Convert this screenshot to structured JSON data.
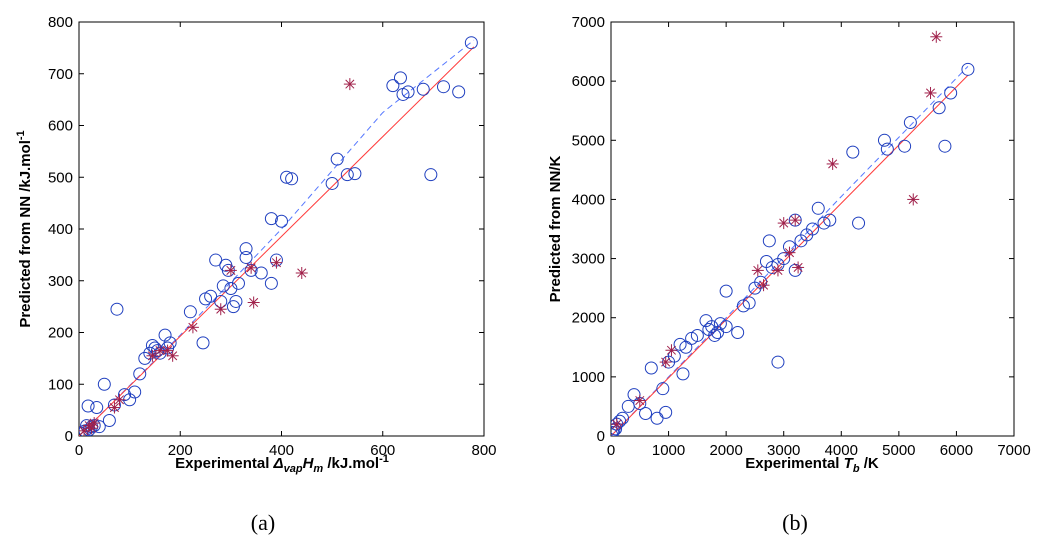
{
  "chart_data": [
    {
      "type": "scatter",
      "panel_label": "(a)",
      "title": "",
      "xlabel": {
        "prefix": "Experimental ",
        "sym": "Δ",
        "sub": "vap",
        "sym2": "H",
        "sub2": "m",
        "unit": " /kJ.mol",
        "sup": "-1"
      },
      "ylabel": {
        "text": "Predicted from NN /kJ.mol",
        "sup": "-1"
      },
      "xlim": [
        0,
        800
      ],
      "ylim": [
        0,
        800
      ],
      "xticks": [
        0,
        200,
        400,
        600,
        800
      ],
      "yticks": [
        0,
        100,
        200,
        300,
        400,
        500,
        600,
        700,
        800
      ],
      "grid": false,
      "colors": {
        "circle": "#1f3fbf",
        "star": "#a0204a",
        "solid": "#ff3b3b",
        "dashed": "#5577ff"
      },
      "circles": [
        [
          5,
          5
        ],
        [
          8,
          8
        ],
        [
          12,
          10
        ],
        [
          15,
          20
        ],
        [
          20,
          12
        ],
        [
          25,
          18
        ],
        [
          18,
          58
        ],
        [
          30,
          20
        ],
        [
          35,
          55
        ],
        [
          40,
          18
        ],
        [
          50,
          100
        ],
        [
          60,
          30
        ],
        [
          70,
          60
        ],
        [
          75,
          245
        ],
        [
          90,
          80
        ],
        [
          100,
          70
        ],
        [
          110,
          85
        ],
        [
          120,
          120
        ],
        [
          130,
          150
        ],
        [
          140,
          160
        ],
        [
          145,
          175
        ],
        [
          150,
          170
        ],
        [
          155,
          165
        ],
        [
          160,
          160
        ],
        [
          170,
          195
        ],
        [
          175,
          170
        ],
        [
          180,
          180
        ],
        [
          220,
          240
        ],
        [
          245,
          180
        ],
        [
          250,
          265
        ],
        [
          260,
          270
        ],
        [
          270,
          340
        ],
        [
          280,
          260
        ],
        [
          285,
          290
        ],
        [
          290,
          330
        ],
        [
          295,
          320
        ],
        [
          300,
          285
        ],
        [
          305,
          250
        ],
        [
          310,
          260
        ],
        [
          315,
          295
        ],
        [
          330,
          345
        ],
        [
          330,
          362
        ],
        [
          340,
          320
        ],
        [
          360,
          315
        ],
        [
          380,
          295
        ],
        [
          380,
          420
        ],
        [
          390,
          340
        ],
        [
          400,
          415
        ],
        [
          410,
          500
        ],
        [
          420,
          497
        ],
        [
          500,
          488
        ],
        [
          510,
          535
        ],
        [
          530,
          505
        ],
        [
          545,
          507
        ],
        [
          620,
          677
        ],
        [
          635,
          692
        ],
        [
          640,
          660
        ],
        [
          650,
          665
        ],
        [
          680,
          670
        ],
        [
          695,
          505
        ],
        [
          720,
          675
        ],
        [
          750,
          665
        ],
        [
          775,
          760
        ]
      ],
      "stars": [
        [
          10,
          10
        ],
        [
          20,
          20
        ],
        [
          25,
          15
        ],
        [
          30,
          25
        ],
        [
          70,
          55
        ],
        [
          80,
          70
        ],
        [
          145,
          155
        ],
        [
          160,
          165
        ],
        [
          175,
          165
        ],
        [
          185,
          155
        ],
        [
          225,
          210
        ],
        [
          280,
          245
        ],
        [
          300,
          320
        ],
        [
          340,
          325
        ],
        [
          345,
          258
        ],
        [
          390,
          335
        ],
        [
          440,
          315
        ],
        [
          535,
          680
        ]
      ],
      "solid_line": [
        [
          0,
          0
        ],
        [
          780,
          752
        ]
      ],
      "dashed_line": [
        [
          0,
          0
        ],
        [
          200,
          195
        ],
        [
          400,
          400
        ],
        [
          600,
          625
        ],
        [
          780,
          765
        ]
      ]
    },
    {
      "type": "scatter",
      "panel_label": "(b)",
      "title": "",
      "xlabel": {
        "prefix": "Experimental ",
        "sym": "T",
        "sub": "b",
        "unit": " /K"
      },
      "ylabel": {
        "text": "Predicted from NN/K"
      },
      "xlim": [
        0,
        7000
      ],
      "ylim": [
        0,
        7000
      ],
      "xticks": [
        0,
        1000,
        2000,
        3000,
        4000,
        5000,
        6000,
        7000
      ],
      "yticks": [
        0,
        1000,
        2000,
        3000,
        4000,
        5000,
        6000,
        7000
      ],
      "grid": false,
      "colors": {
        "circle": "#1f3fbf",
        "star": "#a0204a",
        "solid": "#ff3b3b",
        "dashed": "#5577ff"
      },
      "circles": [
        [
          10,
          20
        ],
        [
          30,
          60
        ],
        [
          50,
          100
        ],
        [
          80,
          120
        ],
        [
          100,
          200
        ],
        [
          150,
          250
        ],
        [
          200,
          300
        ],
        [
          300,
          500
        ],
        [
          400,
          700
        ],
        [
          500,
          550
        ],
        [
          600,
          380
        ],
        [
          700,
          1150
        ],
        [
          800,
          300
        ],
        [
          900,
          800
        ],
        [
          950,
          400
        ],
        [
          1000,
          1250
        ],
        [
          1100,
          1350
        ],
        [
          1200,
          1550
        ],
        [
          1250,
          1050
        ],
        [
          1300,
          1500
        ],
        [
          1400,
          1650
        ],
        [
          1500,
          1700
        ],
        [
          1650,
          1950
        ],
        [
          1700,
          1800
        ],
        [
          1750,
          1850
        ],
        [
          1800,
          1700
        ],
        [
          1850,
          1750
        ],
        [
          1900,
          1900
        ],
        [
          2000,
          1850
        ],
        [
          2000,
          2450
        ],
        [
          2200,
          1750
        ],
        [
          2300,
          2200
        ],
        [
          2400,
          2250
        ],
        [
          2500,
          2500
        ],
        [
          2600,
          2600
        ],
        [
          2700,
          2950
        ],
        [
          2750,
          3300
        ],
        [
          2800,
          2850
        ],
        [
          2900,
          1250
        ],
        [
          2900,
          2900
        ],
        [
          3000,
          3000
        ],
        [
          3100,
          3200
        ],
        [
          3200,
          2800
        ],
        [
          3200,
          3650
        ],
        [
          3300,
          3300
        ],
        [
          3400,
          3400
        ],
        [
          3500,
          3500
        ],
        [
          3600,
          3850
        ],
        [
          3700,
          3600
        ],
        [
          3800,
          3650
        ],
        [
          4200,
          4800
        ],
        [
          4300,
          3600
        ],
        [
          4750,
          5000
        ],
        [
          4800,
          4850
        ],
        [
          5100,
          4900
        ],
        [
          5200,
          5300
        ],
        [
          5700,
          5550
        ],
        [
          5800,
          4900
        ],
        [
          5900,
          5800
        ],
        [
          6200,
          6200
        ]
      ],
      "stars": [
        [
          100,
          200
        ],
        [
          500,
          600
        ],
        [
          950,
          1250
        ],
        [
          1050,
          1450
        ],
        [
          2550,
          2800
        ],
        [
          2650,
          2550
        ],
        [
          2900,
          2800
        ],
        [
          3000,
          3600
        ],
        [
          3100,
          3100
        ],
        [
          3200,
          3650
        ],
        [
          3250,
          2850
        ],
        [
          3850,
          4600
        ],
        [
          5250,
          4000
        ],
        [
          5550,
          5800
        ],
        [
          5650,
          6750
        ]
      ],
      "solid_line": [
        [
          0,
          0
        ],
        [
          6200,
          6100
        ]
      ],
      "dashed_line": [
        [
          0,
          0
        ],
        [
          2000,
          2000
        ],
        [
          4000,
          4050
        ],
        [
          6200,
          6250
        ]
      ]
    }
  ]
}
